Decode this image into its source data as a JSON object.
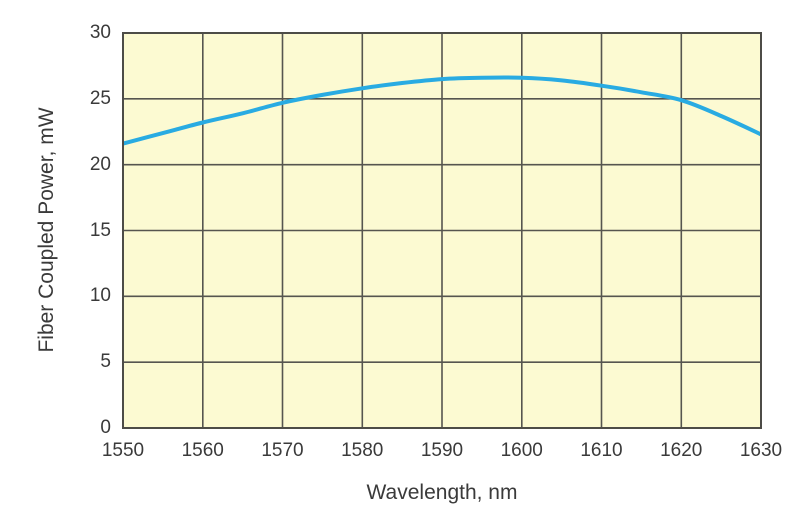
{
  "chart_data": {
    "type": "line",
    "xlabel": "Wavelength, nm",
    "ylabel": "Fiber Coupled Power, mW",
    "x": [
      1550,
      1555,
      1560,
      1565,
      1570,
      1575,
      1580,
      1585,
      1590,
      1595,
      1600,
      1605,
      1610,
      1615,
      1620,
      1625,
      1630
    ],
    "series": [
      {
        "name": "Fiber Coupled Power",
        "values": [
          21.6,
          22.4,
          23.2,
          23.9,
          24.7,
          25.3,
          25.8,
          26.2,
          26.5,
          26.6,
          26.6,
          26.4,
          26.0,
          25.5,
          24.9,
          23.7,
          22.3
        ]
      }
    ],
    "xlim": [
      1550,
      1630
    ],
    "ylim": [
      0,
      30
    ],
    "x_ticks": [
      1550,
      1560,
      1570,
      1580,
      1590,
      1600,
      1610,
      1620,
      1630
    ],
    "y_ticks": [
      0,
      5,
      10,
      15,
      20,
      25,
      30
    ],
    "grid": true,
    "legend_position": "none",
    "colors": {
      "line": "#29ABE2",
      "plot_background": "#FCFAD2",
      "grid": "#56554F",
      "border": "#4D4C47",
      "text": "#3A3A3A",
      "page_background": "#FFFFFF"
    }
  }
}
